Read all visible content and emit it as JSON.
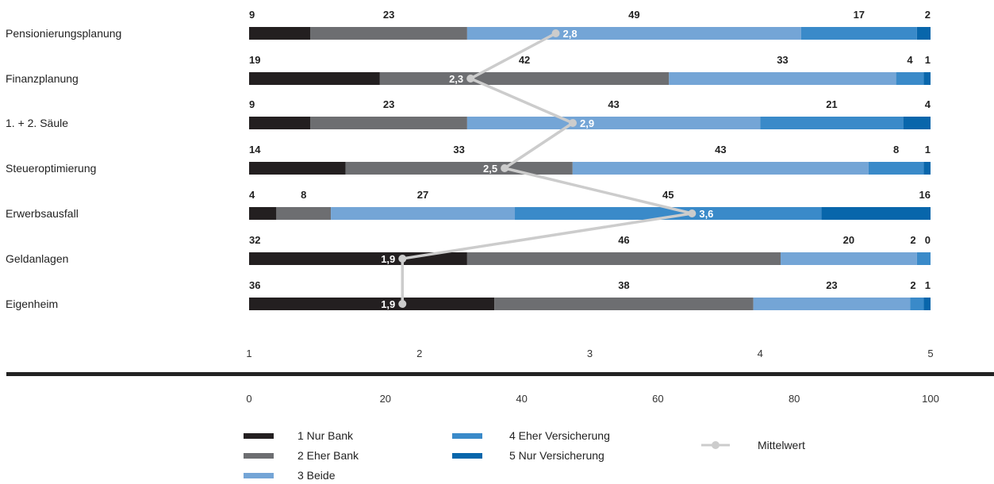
{
  "chart_data": {
    "type": "bar",
    "stacked": true,
    "orientation": "horizontal",
    "categories": [
      "Pensionierungsplanung",
      "Finanzplanung",
      "1. + 2. Säule",
      "Steueroptimierung",
      "Erwerbsausfall",
      "Geldanlagen",
      "Eigenheim"
    ],
    "series": [
      {
        "name": "1  Nur Bank",
        "color": "#231f20",
        "values": [
          9,
          19,
          9,
          14,
          4,
          32,
          36
        ]
      },
      {
        "name": "2  Eher Bank",
        "color": "#6d6e71",
        "values": [
          23,
          42,
          23,
          33,
          8,
          46,
          38
        ]
      },
      {
        "name": "3  Beide",
        "color": "#74a5d6",
        "values": [
          49,
          33,
          43,
          43,
          27,
          20,
          23
        ]
      },
      {
        "name": "4  Eher Versicherung",
        "color": "#3a8ac9",
        "values": [
          17,
          4,
          21,
          8,
          45,
          2,
          2
        ]
      },
      {
        "name": "5  Nur Versicherung",
        "color": "#0866ab",
        "values": [
          2,
          1,
          4,
          1,
          16,
          0,
          1
        ]
      }
    ],
    "mean_series": {
      "name": "Mittelwert",
      "color": "#cccccc",
      "values": [
        2.8,
        2.3,
        2.9,
        2.5,
        3.6,
        1.9,
        1.9
      ],
      "labels": [
        "2,8",
        "2,3",
        "2,9",
        "2,5",
        "3,6",
        "1,9",
        "1,9"
      ]
    },
    "mean_axis": {
      "range": [
        1,
        5
      ],
      "ticks": [
        "1",
        "2",
        "3",
        "4",
        "5"
      ]
    },
    "percent_axis": {
      "range": [
        0,
        100
      ],
      "ticks": [
        "0",
        "20",
        "40",
        "60",
        "80",
        "100"
      ]
    },
    "legend_position": "bottom"
  }
}
